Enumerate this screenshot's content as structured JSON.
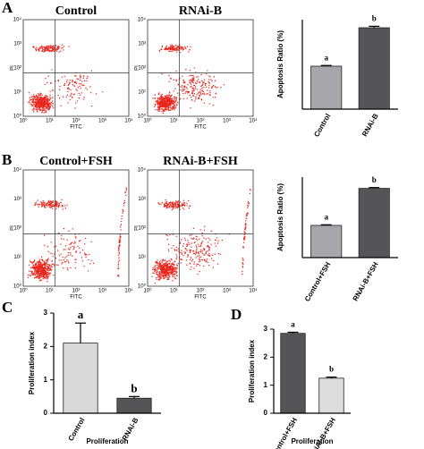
{
  "panel_labels": [
    "A",
    "B",
    "C",
    "D"
  ],
  "flow_axis_ticks": [
    "10⁰",
    "10¹",
    "10²",
    "10³",
    "10⁴"
  ],
  "flow_plots": [
    {
      "title": "Control",
      "x_label": "FITC",
      "y_label": "PI"
    },
    {
      "title": "RNAi-B",
      "x_label": "FITC",
      "y_label": "PI"
    },
    {
      "title": "Control+FSH",
      "x_label": "FITC",
      "y_label": "PI"
    },
    {
      "title": "RNAi-B+FSH",
      "x_label": "FITC",
      "y_label": "PI"
    }
  ],
  "chart_data": [
    {
      "type": "bar",
      "y_label": "Apoptosis Ratio (%)",
      "categories": [
        "Control",
        "RNAi-B"
      ],
      "values": [
        2.4,
        4.55
      ],
      "errors": [
        0.04,
        0.08
      ],
      "annotations": [
        "a",
        "b"
      ],
      "colors": [
        "#a6a6ab",
        "#555558"
      ],
      "ylim": [
        0,
        5
      ]
    },
    {
      "type": "bar",
      "y_label": "Apoptosis Ratio (%)",
      "categories": [
        "Control+FSH",
        "RNAi-B+FSH"
      ],
      "values": [
        2.0,
        4.3
      ],
      "errors": [
        0.04,
        0.05
      ],
      "annotations": [
        "a",
        "b"
      ],
      "colors": [
        "#a6a6ab",
        "#555558"
      ],
      "ylim": [
        0,
        5
      ]
    },
    {
      "type": "bar",
      "x_label": "Proliferation",
      "y_label": "Proliferation index",
      "categories": [
        "Control",
        "RNAi-B"
      ],
      "values": [
        2.1,
        0.45
      ],
      "errors": [
        0.6,
        0.05
      ],
      "annotations": [
        "a",
        "b"
      ],
      "colors": [
        "#d9d9d9",
        "#555558"
      ],
      "ylim": [
        0,
        3
      ],
      "yticks": [
        0,
        1,
        2,
        3
      ]
    },
    {
      "type": "bar",
      "x_label": "Proliferation",
      "y_label": "Proliferation index",
      "categories": [
        "Control+FSH",
        "RNAi-B+FSH"
      ],
      "values": [
        2.85,
        1.25
      ],
      "errors": [
        0.04,
        0.04
      ],
      "annotations": [
        "a",
        "b"
      ],
      "colors": [
        "#555558",
        "#dcdcdc"
      ],
      "ylim": [
        0,
        3
      ],
      "yticks": [
        0,
        1,
        2,
        3
      ]
    }
  ]
}
